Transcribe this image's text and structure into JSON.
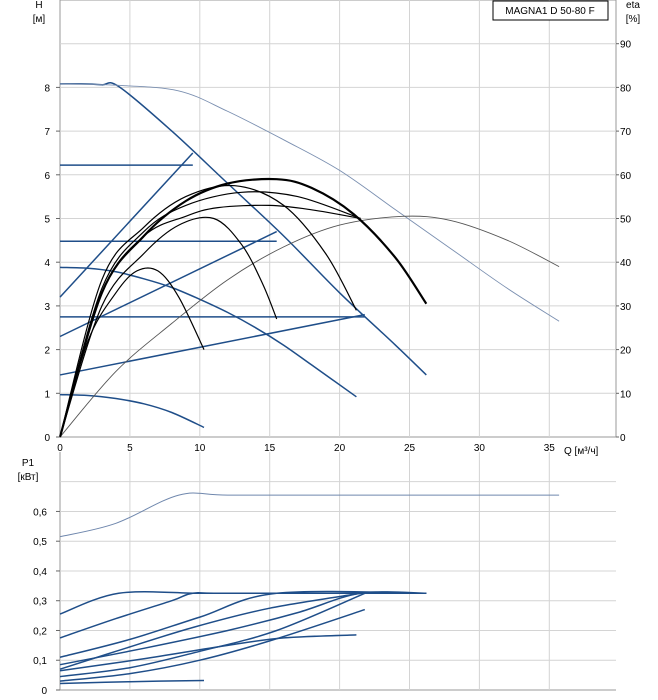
{
  "chart_data": [
    {
      "type": "line",
      "title": "MAGNA1 D 50-80 F",
      "y_label": "H",
      "y_unit": "[м]",
      "y2_label": "eta",
      "y2_unit": "[%]",
      "x_label": "Q [м³/ч]",
      "xlim": [
        0,
        39
      ],
      "ylim": [
        0,
        10
      ],
      "y2lim": [
        0,
        100
      ],
      "xticks": [
        0,
        5,
        10,
        15,
        20,
        25,
        30,
        35
      ],
      "yticks": [
        0,
        1,
        2,
        3,
        4,
        5,
        6,
        7,
        8
      ],
      "y2ticks": [
        0,
        10,
        20,
        30,
        40,
        50,
        60,
        70,
        80,
        90
      ],
      "grid": true,
      "series": [
        {
          "group": "pump-curve",
          "color": "#1f4e89",
          "x": [
            0,
            1.5,
            3,
            4.2,
            8,
            12,
            16,
            20,
            24,
            26.2
          ],
          "y": [
            8.08,
            8.08,
            8.06,
            8.02,
            7.0,
            5.8,
            4.6,
            3.3,
            2.1,
            1.42
          ]
        },
        {
          "group": "pump-curve",
          "color": "#1f4e89",
          "x": [
            0,
            2,
            4,
            6,
            8,
            10,
            12,
            14,
            16,
            18,
            21.2
          ],
          "y": [
            3.88,
            3.86,
            3.78,
            3.62,
            3.42,
            3.15,
            2.85,
            2.5,
            2.1,
            1.65,
            0.92
          ]
        },
        {
          "group": "pump-curve",
          "color": "#1f4e89",
          "x": [
            0,
            2,
            4,
            6,
            8,
            10.3
          ],
          "y": [
            0.97,
            0.95,
            0.88,
            0.76,
            0.56,
            0.22
          ]
        },
        {
          "group": "pump-curve",
          "color": "#1f4e89",
          "x": [
            0,
            9.5
          ],
          "y": [
            6.22,
            6.22
          ]
        },
        {
          "group": "pump-curve",
          "color": "#1f4e89",
          "x": [
            0,
            15.5
          ],
          "y": [
            4.48,
            4.48
          ]
        },
        {
          "group": "pump-curve",
          "color": "#1f4e89",
          "x": [
            0,
            21.8
          ],
          "y": [
            2.75,
            2.75
          ]
        },
        {
          "group": "pump-curve",
          "color": "#1f4e89",
          "x": [
            0,
            9.5
          ],
          "y": [
            3.2,
            6.5
          ]
        },
        {
          "group": "pump-curve",
          "color": "#1f4e89",
          "x": [
            0,
            15.5
          ],
          "y": [
            2.3,
            4.7
          ]
        },
        {
          "group": "pump-curve",
          "color": "#1f4e89",
          "x": [
            0,
            21.8
          ],
          "y": [
            1.42,
            2.8
          ]
        },
        {
          "group": "eta-curve",
          "color": "#7a8fb0",
          "x": [
            0,
            4,
            8.5,
            12,
            16,
            20,
            24,
            28,
            32,
            35.7
          ],
          "y": [
            80.8,
            80.5,
            79.2,
            74.5,
            68,
            61,
            52,
            43,
            34,
            26.5
          ]
        },
        {
          "group": "eta-curve",
          "color": "#555555",
          "x": [
            0,
            4,
            8,
            12,
            16,
            20,
            24.5,
            28,
            32,
            35.7
          ],
          "y": [
            0,
            15,
            26,
            36,
            43.5,
            48.5,
            50.5,
            49.5,
            45,
            39
          ]
        },
        {
          "group": "eta-curve",
          "color": "#000000",
          "x": [
            0,
            3,
            6,
            9,
            12,
            15.5,
            18,
            21,
            24,
            26.2
          ],
          "y": [
            0,
            33,
            46,
            54,
            58,
            59,
            57,
            51,
            41,
            30.5
          ]
        },
        {
          "group": "eta-curve",
          "color": "#000000",
          "x": [
            0,
            3,
            6,
            9,
            13,
            17,
            21.5
          ],
          "y": [
            0,
            34,
            47,
            53,
            56,
            55,
            50
          ]
        },
        {
          "group": "eta-curve",
          "color": "#000000",
          "x": [
            0,
            3,
            6,
            9,
            12.5,
            16,
            19,
            21.2
          ],
          "y": [
            0,
            36,
            48,
            55,
            57.5,
            53,
            42,
            29
          ]
        },
        {
          "group": "eta-curve",
          "color": "#000000",
          "x": [
            0,
            3,
            6,
            9,
            11.3,
            15,
            18,
            21.5
          ],
          "y": [
            0,
            33,
            46,
            50.5,
            52.5,
            53,
            52,
            50
          ]
        },
        {
          "group": "eta-curve",
          "color": "#000000",
          "x": [
            0,
            3,
            6,
            8.5,
            11,
            13,
            14.5,
            15.5
          ],
          "y": [
            0,
            30,
            42,
            48.5,
            50,
            44,
            35,
            27
          ]
        },
        {
          "group": "eta-curve",
          "color": "#000000",
          "x": [
            0,
            2,
            4,
            5.5,
            7,
            8.5,
            10.3
          ],
          "y": [
            0,
            22,
            33,
            38,
            38,
            32,
            20
          ]
        }
      ]
    },
    {
      "type": "line",
      "y_label": "P1",
      "y_unit": "[кВт]",
      "xlim": [
        0,
        39
      ],
      "ylim": [
        0,
        0.7
      ],
      "yticks": [
        0,
        0.1,
        0.2,
        0.3,
        0.4,
        0.5,
        0.6
      ],
      "ytick_labels": [
        "0",
        "0,1",
        "0,2",
        "0,3",
        "0,4",
        "0,5",
        "0,6"
      ],
      "grid": true,
      "series": [
        {
          "color": "#6f87ad",
          "x": [
            0,
            4,
            8.5,
            12,
            20,
            30,
            35.7
          ],
          "y": [
            0.515,
            0.56,
            0.655,
            0.655,
            0.655,
            0.655,
            0.655
          ]
        },
        {
          "color": "#1f4e89",
          "x": [
            0,
            4.2,
            10,
            15,
            20,
            26.2
          ],
          "y": [
            0.255,
            0.325,
            0.325,
            0.325,
            0.325,
            0.325
          ]
        },
        {
          "color": "#1f4e89",
          "x": [
            0,
            4,
            8,
            9.5,
            12,
            26.2
          ],
          "y": [
            0.175,
            0.24,
            0.3,
            0.325,
            0.325,
            0.325
          ]
        },
        {
          "color": "#1f4e89",
          "x": [
            0,
            5,
            10,
            15.5,
            26.2
          ],
          "y": [
            0.11,
            0.17,
            0.245,
            0.325,
            0.325
          ]
        },
        {
          "color": "#1f4e89",
          "x": [
            0,
            6,
            12,
            17,
            21.5,
            26.2
          ],
          "y": [
            0.085,
            0.14,
            0.2,
            0.26,
            0.325,
            0.325
          ]
        },
        {
          "color": "#1f4e89",
          "x": [
            0,
            4,
            9.5,
            15,
            21.5
          ],
          "y": [
            0.07,
            0.13,
            0.21,
            0.275,
            0.325
          ]
        },
        {
          "color": "#1f4e89",
          "x": [
            0,
            6,
            12,
            16,
            21.2
          ],
          "y": [
            0.065,
            0.105,
            0.15,
            0.175,
            0.185
          ]
        },
        {
          "color": "#1f4e89",
          "x": [
            0,
            5,
            10,
            15.5,
            21.8
          ],
          "y": [
            0.045,
            0.075,
            0.13,
            0.2,
            0.325
          ]
        },
        {
          "color": "#1f4e89",
          "x": [
            0,
            5,
            10,
            15,
            21.8
          ],
          "y": [
            0.03,
            0.055,
            0.1,
            0.165,
            0.27
          ]
        },
        {
          "color": "#1f4e89",
          "x": [
            0,
            5,
            10.3
          ],
          "y": [
            0.022,
            0.028,
            0.032
          ]
        }
      ]
    }
  ]
}
